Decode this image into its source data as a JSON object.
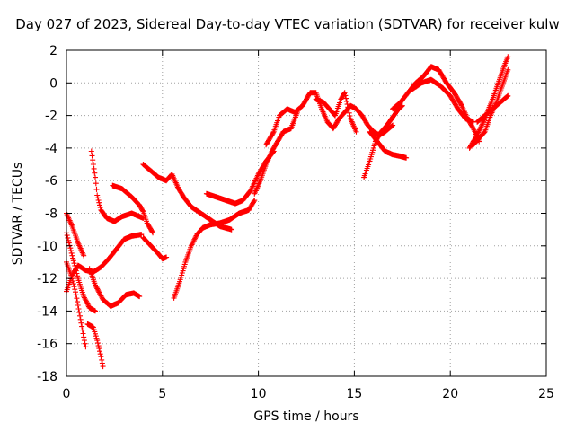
{
  "chart_data": {
    "type": "scatter",
    "title": "Day 027 of 2023, Sidereal Day-to-day VTEC variation (SDTVAR) for receiver kulw",
    "xlabel": "GPS time / hours",
    "ylabel": "SDTVAR / TECUs",
    "xlim": [
      0,
      25
    ],
    "ylim": [
      -18,
      2
    ],
    "xticks": [
      0,
      5,
      10,
      15,
      20,
      25
    ],
    "yticks": [
      -18,
      -16,
      -14,
      -12,
      -10,
      -8,
      -6,
      -4,
      -2,
      0,
      2
    ],
    "grid": true,
    "marker": "+",
    "series": [
      {
        "color": "#ff0000",
        "tracks": [
          [
            [
              0.0,
              -8.0
            ],
            [
              0.3,
              -8.8
            ],
            [
              0.6,
              -9.8
            ],
            [
              0.9,
              -10.6
            ]
          ],
          [
            [
              0.0,
              -9.2
            ],
            [
              0.3,
              -10.6
            ],
            [
              0.6,
              -12.0
            ],
            [
              0.9,
              -13.1
            ],
            [
              1.2,
              -13.8
            ],
            [
              1.5,
              -14.0
            ]
          ],
          [
            [
              0.0,
              -11.0
            ],
            [
              0.3,
              -12.0
            ],
            [
              0.5,
              -13.0
            ],
            [
              0.7,
              -14.3
            ],
            [
              0.9,
              -15.6
            ],
            [
              1.0,
              -16.2
            ]
          ],
          [
            [
              0.0,
              -12.8
            ],
            [
              0.3,
              -11.8
            ],
            [
              0.6,
              -11.2
            ],
            [
              1.0,
              -11.5
            ],
            [
              1.4,
              -11.6
            ],
            [
              1.8,
              -11.3
            ],
            [
              2.2,
              -10.8
            ],
            [
              2.6,
              -10.2
            ],
            [
              3.0,
              -9.6
            ],
            [
              3.4,
              -9.4
            ],
            [
              3.9,
              -9.3
            ]
          ],
          [
            [
              1.1,
              -14.8
            ],
            [
              1.4,
              -15.0
            ],
            [
              1.6,
              -15.8
            ],
            [
              1.8,
              -16.8
            ],
            [
              1.9,
              -17.4
            ]
          ],
          [
            [
              1.3,
              -4.2
            ],
            [
              1.5,
              -5.8
            ],
            [
              1.6,
              -6.9
            ],
            [
              1.8,
              -7.8
            ],
            [
              2.1,
              -8.3
            ],
            [
              2.5,
              -8.5
            ],
            [
              2.9,
              -8.2
            ],
            [
              3.4,
              -8.0
            ],
            [
              4.0,
              -8.3
            ]
          ],
          [
            [
              1.2,
              -11.4
            ],
            [
              1.5,
              -12.4
            ],
            [
              1.9,
              -13.3
            ],
            [
              2.3,
              -13.7
            ],
            [
              2.7,
              -13.5
            ],
            [
              3.1,
              -13.0
            ],
            [
              3.5,
              -12.9
            ],
            [
              3.8,
              -13.1
            ]
          ],
          [
            [
              2.4,
              -6.3
            ],
            [
              2.9,
              -6.5
            ],
            [
              3.4,
              -7.0
            ],
            [
              3.8,
              -7.5
            ],
            [
              4.0,
              -7.9
            ],
            [
              4.2,
              -8.6
            ],
            [
              4.5,
              -9.2
            ]
          ],
          [
            [
              4.0,
              -9.5
            ],
            [
              4.4,
              -10.0
            ],
            [
              4.8,
              -10.5
            ],
            [
              5.0,
              -10.8
            ],
            [
              5.2,
              -10.7
            ]
          ],
          [
            [
              4.0,
              -5.0
            ],
            [
              4.4,
              -5.4
            ],
            [
              4.8,
              -5.8
            ],
            [
              5.2,
              -6.0
            ],
            [
              5.5,
              -5.6
            ],
            [
              5.8,
              -6.4
            ],
            [
              6.1,
              -7.0
            ],
            [
              6.5,
              -7.6
            ],
            [
              7.0,
              -8.0
            ],
            [
              7.5,
              -8.4
            ],
            [
              8.0,
              -8.8
            ],
            [
              8.6,
              -9.0
            ]
          ],
          [
            [
              5.6,
              -13.2
            ],
            [
              5.9,
              -12.2
            ],
            [
              6.2,
              -11.0
            ],
            [
              6.5,
              -10.0
            ],
            [
              6.8,
              -9.3
            ],
            [
              7.1,
              -8.9
            ],
            [
              7.5,
              -8.7
            ],
            [
              8.0,
              -8.6
            ],
            [
              8.5,
              -8.4
            ],
            [
              9.0,
              -8.0
            ],
            [
              9.5,
              -7.8
            ],
            [
              9.8,
              -7.2
            ]
          ],
          [
            [
              7.3,
              -6.8
            ],
            [
              7.8,
              -7.0
            ],
            [
              8.3,
              -7.2
            ],
            [
              8.8,
              -7.4
            ],
            [
              9.2,
              -7.2
            ],
            [
              9.6,
              -6.6
            ],
            [
              10.0,
              -5.6
            ],
            [
              10.4,
              -4.8
            ],
            [
              10.8,
              -4.2
            ]
          ],
          [
            [
              9.8,
              -6.8
            ],
            [
              10.1,
              -6.0
            ],
            [
              10.4,
              -5.0
            ],
            [
              10.7,
              -4.2
            ],
            [
              11.0,
              -3.6
            ],
            [
              11.3,
              -3.0
            ],
            [
              11.7,
              -2.8
            ],
            [
              12.1,
              -1.6
            ]
          ],
          [
            [
              10.4,
              -3.8
            ],
            [
              10.8,
              -3.0
            ],
            [
              11.1,
              -2.0
            ],
            [
              11.5,
              -1.6
            ],
            [
              11.9,
              -1.8
            ],
            [
              12.3,
              -1.4
            ],
            [
              12.7,
              -0.6
            ],
            [
              13.0,
              -0.6
            ],
            [
              13.3,
              -1.6
            ],
            [
              13.6,
              -2.4
            ],
            [
              13.9,
              -2.8
            ],
            [
              14.2,
              -2.2
            ],
            [
              14.5,
              -1.8
            ],
            [
              14.8,
              -1.4
            ],
            [
              15.1,
              -1.6
            ],
            [
              15.4,
              -2.0
            ],
            [
              15.7,
              -2.6
            ],
            [
              16.0,
              -3.0
            ],
            [
              16.3,
              -3.2
            ],
            [
              16.6,
              -3.0
            ],
            [
              17.0,
              -2.6
            ]
          ],
          [
            [
              13.0,
              -1.0
            ],
            [
              13.4,
              -1.2
            ],
            [
              13.7,
              -1.6
            ],
            [
              14.0,
              -2.0
            ],
            [
              14.3,
              -1.0
            ],
            [
              14.5,
              -0.6
            ],
            [
              14.8,
              -2.2
            ],
            [
              15.1,
              -3.0
            ]
          ],
          [
            [
              15.5,
              -5.8
            ],
            [
              15.8,
              -4.8
            ],
            [
              16.1,
              -3.6
            ],
            [
              16.4,
              -3.0
            ],
            [
              16.7,
              -2.6
            ],
            [
              17.0,
              -2.1
            ],
            [
              17.3,
              -1.6
            ],
            [
              17.5,
              -1.4
            ]
          ],
          [
            [
              15.8,
              -3.0
            ],
            [
              16.2,
              -3.6
            ],
            [
              16.6,
              -4.2
            ],
            [
              17.0,
              -4.4
            ],
            [
              17.4,
              -4.5
            ],
            [
              17.7,
              -4.6
            ]
          ],
          [
            [
              17.0,
              -1.6
            ],
            [
              17.4,
              -1.2
            ],
            [
              17.8,
              -0.6
            ],
            [
              18.2,
              0.0
            ],
            [
              18.6,
              0.4
            ],
            [
              19.0,
              1.0
            ],
            [
              19.4,
              0.8
            ],
            [
              19.8,
              0.0
            ],
            [
              20.2,
              -0.6
            ],
            [
              20.6,
              -1.4
            ],
            [
              20.9,
              -2.2
            ],
            [
              21.2,
              -2.8
            ],
            [
              21.5,
              -3.6
            ]
          ],
          [
            [
              18.0,
              -0.4
            ],
            [
              18.5,
              0.0
            ],
            [
              19.0,
              0.2
            ],
            [
              19.5,
              -0.2
            ],
            [
              20.0,
              -0.8
            ],
            [
              20.4,
              -1.6
            ],
            [
              20.8,
              -2.2
            ],
            [
              21.2,
              -2.4
            ]
          ],
          [
            [
              21.2,
              -3.8
            ],
            [
              21.5,
              -3.4
            ],
            [
              21.8,
              -3.0
            ],
            [
              22.1,
              -2.0
            ],
            [
              22.4,
              -1.2
            ],
            [
              22.7,
              -0.2
            ],
            [
              23.0,
              0.8
            ]
          ],
          [
            [
              21.0,
              -4.0
            ],
            [
              21.4,
              -3.2
            ],
            [
              21.8,
              -2.2
            ],
            [
              22.2,
              -1.0
            ],
            [
              22.5,
              0.0
            ],
            [
              22.8,
              1.0
            ],
            [
              23.0,
              1.6
            ]
          ],
          [
            [
              21.4,
              -2.4
            ],
            [
              21.8,
              -2.0
            ],
            [
              22.2,
              -1.6
            ],
            [
              22.6,
              -1.2
            ],
            [
              23.0,
              -0.8
            ]
          ]
        ]
      }
    ]
  }
}
